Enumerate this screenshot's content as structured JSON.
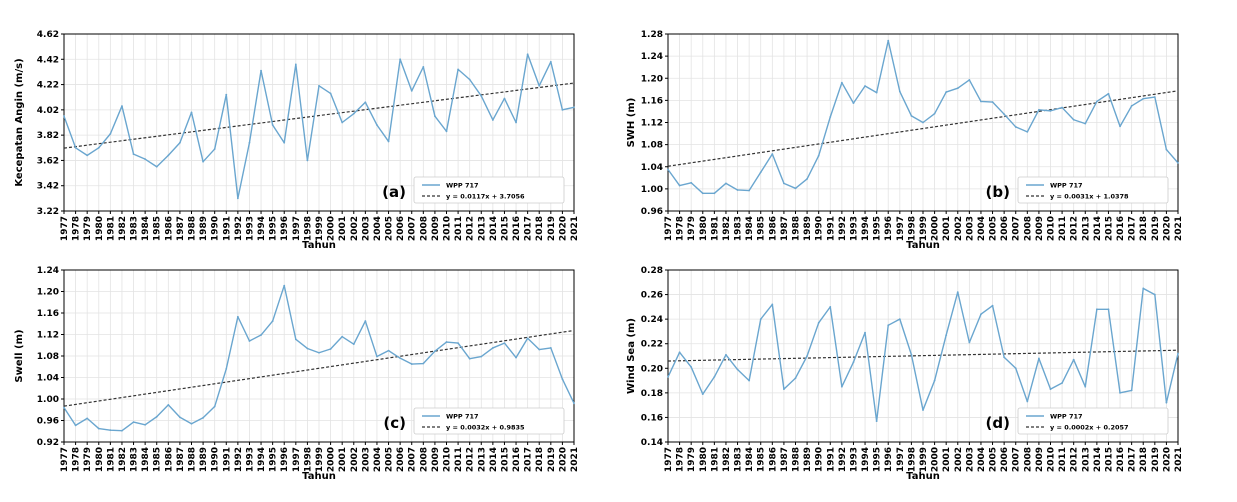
{
  "colors": {
    "series": "#6aa6cf",
    "trend": "#333333",
    "grid": "#e3e3e3",
    "axis": "#000000"
  },
  "chart_data": [
    {
      "type": "line",
      "panel_label": "(a)",
      "xlabel": "Tahun",
      "ylabel": "Kecepatan Angin (m/s)",
      "ylim": [
        3.22,
        4.62
      ],
      "yticks": [
        "3.22",
        "3.42",
        "3.62",
        "3.82",
        "4.02",
        "4.22",
        "4.42",
        "4.62"
      ],
      "xlim": [
        1977,
        2021
      ],
      "grid": true,
      "legend_position": "bottom-right",
      "x": [
        1977,
        1978,
        1979,
        1980,
        1981,
        1982,
        1983,
        1984,
        1985,
        1986,
        1987,
        1988,
        1989,
        1990,
        1991,
        1992,
        1993,
        1994,
        1995,
        1996,
        1997,
        1998,
        1999,
        2000,
        2001,
        2002,
        2003,
        2004,
        2005,
        2006,
        2007,
        2008,
        2009,
        2010,
        2011,
        2012,
        2013,
        2014,
        2015,
        2016,
        2017,
        2018,
        2019,
        2020,
        2021
      ],
      "series": [
        {
          "name": "WPP 717",
          "values": [
            3.97,
            3.72,
            3.66,
            3.72,
            3.83,
            4.05,
            3.67,
            3.63,
            3.57,
            3.66,
            3.76,
            4.0,
            3.61,
            3.71,
            4.14,
            3.32,
            3.76,
            4.33,
            3.9,
            3.76,
            4.38,
            3.62,
            4.21,
            4.15,
            3.92,
            3.99,
            4.08,
            3.9,
            3.77,
            4.42,
            4.17,
            4.36,
            3.97,
            3.85,
            4.34,
            4.26,
            4.13,
            3.94,
            4.11,
            3.92,
            4.46,
            4.21,
            4.4,
            4.02,
            4.04
          ]
        },
        {
          "name": "y = 0.0117x + 3.7056",
          "style": "dashed",
          "slope": 0.0117,
          "intercept": 3.7056
        }
      ]
    },
    {
      "type": "line",
      "panel_label": "(b)",
      "xlabel": "Tahun",
      "ylabel": "SWH (m)",
      "ylim": [
        0.96,
        1.28
      ],
      "yticks": [
        "0.96",
        "1.00",
        "1.04",
        "1.08",
        "1.12",
        "1.16",
        "1.20",
        "1.24",
        "1.28"
      ],
      "xlim": [
        1977,
        2021
      ],
      "grid": true,
      "legend_position": "bottom-right",
      "x": [
        1977,
        1978,
        1979,
        1980,
        1981,
        1982,
        1983,
        1984,
        1985,
        1986,
        1987,
        1988,
        1989,
        1990,
        1991,
        1992,
        1993,
        1994,
        1995,
        1996,
        1997,
        1998,
        1999,
        2000,
        2001,
        2002,
        2003,
        2004,
        2005,
        2006,
        2007,
        2008,
        2009,
        2010,
        2011,
        2012,
        2013,
        2014,
        2015,
        2016,
        2017,
        2018,
        2019,
        2020,
        2021
      ],
      "series": [
        {
          "name": "WPP 717",
          "values": [
            1.035,
            1.006,
            1.011,
            0.992,
            0.992,
            1.01,
            0.998,
            0.997,
            1.03,
            1.063,
            1.01,
            1.001,
            1.018,
            1.06,
            1.13,
            1.192,
            1.155,
            1.186,
            1.174,
            1.268,
            1.176,
            1.132,
            1.12,
            1.136,
            1.175,
            1.182,
            1.197,
            1.158,
            1.157,
            1.135,
            1.112,
            1.103,
            1.143,
            1.141,
            1.147,
            1.125,
            1.118,
            1.158,
            1.172,
            1.113,
            1.15,
            1.163,
            1.166,
            1.071,
            1.047
          ]
        },
        {
          "name": "y = 0.0031x + 1.0378",
          "style": "dashed",
          "slope": 0.0031,
          "intercept": 1.0378
        }
      ]
    },
    {
      "type": "line",
      "panel_label": "(c)",
      "xlabel": "Tahun",
      "ylabel": "Swell (m)",
      "ylim": [
        0.92,
        1.24
      ],
      "yticks": [
        "0.92",
        "0.96",
        "1.00",
        "1.04",
        "1.08",
        "1.12",
        "1.16",
        "1.20",
        "1.24"
      ],
      "xlim": [
        1977,
        2021
      ],
      "grid": true,
      "legend_position": "bottom-right",
      "x": [
        1977,
        1978,
        1979,
        1980,
        1981,
        1982,
        1983,
        1984,
        1985,
        1986,
        1987,
        1988,
        1989,
        1990,
        1991,
        1992,
        1993,
        1994,
        1995,
        1996,
        1997,
        1998,
        1999,
        2000,
        2001,
        2002,
        2003,
        2004,
        2005,
        2006,
        2007,
        2008,
        2009,
        2010,
        2011,
        2012,
        2013,
        2014,
        2015,
        2016,
        2017,
        2018,
        2019,
        2020,
        2021
      ],
      "series": [
        {
          "name": "WPP 717",
          "values": [
            0.984,
            0.951,
            0.964,
            0.945,
            0.942,
            0.941,
            0.957,
            0.952,
            0.967,
            0.989,
            0.966,
            0.954,
            0.965,
            0.986,
            1.056,
            1.153,
            1.108,
            1.119,
            1.145,
            1.211,
            1.111,
            1.094,
            1.086,
            1.093,
            1.116,
            1.102,
            1.145,
            1.079,
            1.09,
            1.076,
            1.065,
            1.066,
            1.089,
            1.106,
            1.104,
            1.075,
            1.079,
            1.095,
            1.104,
            1.077,
            1.113,
            1.092,
            1.095,
            1.037,
            0.992
          ]
        },
        {
          "name": "y = 0.0032x + 0.9835",
          "style": "dashed",
          "slope": 0.0032,
          "intercept": 0.9835
        }
      ]
    },
    {
      "type": "line",
      "panel_label": "(d)",
      "xlabel": "Tahun",
      "ylabel": "Wind Sea (m)",
      "ylim": [
        0.14,
        0.28
      ],
      "yticks": [
        "0.14",
        "0.16",
        "0.18",
        "0.20",
        "0.22",
        "0.24",
        "0.26",
        "0.28"
      ],
      "xlim": [
        1977,
        2021
      ],
      "grid": true,
      "legend_position": "bottom-right",
      "x": [
        1977,
        1978,
        1979,
        1980,
        1981,
        1982,
        1983,
        1984,
        1985,
        1986,
        1987,
        1988,
        1989,
        1990,
        1991,
        1992,
        1993,
        1994,
        1995,
        1996,
        1997,
        1998,
        1999,
        2000,
        2001,
        2002,
        2003,
        2004,
        2005,
        2006,
        2007,
        2008,
        2009,
        2010,
        2011,
        2012,
        2013,
        2014,
        2015,
        2016,
        2017,
        2018,
        2019,
        2020,
        2021
      ],
      "series": [
        {
          "name": "WPP 717",
          "values": [
            0.193,
            0.213,
            0.201,
            0.179,
            0.193,
            0.211,
            0.199,
            0.19,
            0.24,
            0.252,
            0.183,
            0.192,
            0.21,
            0.237,
            0.25,
            0.185,
            0.205,
            0.229,
            0.157,
            0.235,
            0.24,
            0.211,
            0.166,
            0.19,
            0.227,
            0.262,
            0.221,
            0.244,
            0.251,
            0.209,
            0.2,
            0.173,
            0.208,
            0.183,
            0.188,
            0.207,
            0.185,
            0.248,
            0.248,
            0.18,
            0.182,
            0.265,
            0.26,
            0.172,
            0.212
          ]
        },
        {
          "name": "y = 0.0002x + 0.2057",
          "style": "dashed",
          "slope": 0.0002,
          "intercept": 0.2057
        }
      ]
    }
  ]
}
